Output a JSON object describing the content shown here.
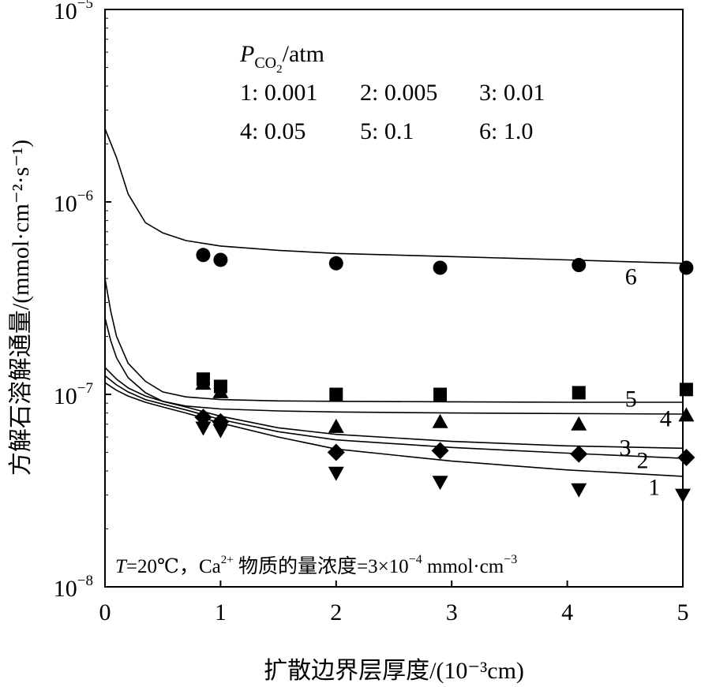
{
  "chart_data": {
    "type": "scatter",
    "title": "",
    "xlabel": "扩散边界层厚度/(10⁻³cm)",
    "ylabel": "方解石溶解通量/(mmol·cm⁻²·s⁻¹)",
    "xlim": [
      0,
      5
    ],
    "ylim": [
      1e-08,
      1e-05
    ],
    "y_scale": "log",
    "grid": false,
    "x_ticks": [
      {
        "value": 0,
        "label": "0"
      },
      {
        "value": 1,
        "label": "1"
      },
      {
        "value": 2,
        "label": "2"
      },
      {
        "value": 3,
        "label": "3"
      },
      {
        "value": 4,
        "label": "4"
      },
      {
        "value": 5,
        "label": "5"
      }
    ],
    "y_ticks": [
      {
        "value": 1e-08,
        "base": "10",
        "exp": "−8"
      },
      {
        "value": 1e-07,
        "base": "10",
        "exp": "−7"
      },
      {
        "value": 1e-06,
        "base": "10",
        "exp": "−6"
      },
      {
        "value": 1e-05,
        "base": "10",
        "exp": "−5"
      }
    ],
    "legend": {
      "position": "top-left",
      "title_main": "P",
      "title_sub": "CO",
      "title_sub2": "2",
      "title_unit": "/atm",
      "entries": [
        "1: 0.001",
        "2: 0.005",
        "3: 0.01",
        "4: 0.05",
        "5: 0.1",
        "6: 1.0"
      ]
    },
    "annotation": {
      "t_symbol": "T",
      "t_value": "=20℃，Ca",
      "ca_sup": "2+",
      "rest": " 物质的量浓度=3×10",
      "exp": "−4",
      "unit_a": " mmol·cm",
      "unit_exp": "−3"
    },
    "series": [
      {
        "label": "1",
        "marker": "triangle-down",
        "curve_x": [
          0,
          0.1,
          0.2,
          0.35,
          0.5,
          0.7,
          1.0,
          1.5,
          2.0,
          3.0,
          4.0,
          5.0
        ],
        "curve_y": [
          1.15e-07,
          1.05e-07,
          9.8e-08,
          9.1e-08,
          8.6e-08,
          8e-08,
          7.1e-08,
          6e-08,
          5.2e-08,
          4.5e-08,
          4.05e-08,
          3.75e-08
        ],
        "points_x": [
          0.85,
          1.0,
          2.0,
          2.9,
          4.1,
          5.0
        ],
        "points_y": [
          6.7e-08,
          6.5e-08,
          3.9e-08,
          3.5e-08,
          3.2e-08,
          3e-08
        ]
      },
      {
        "label": "2",
        "marker": "diamond",
        "curve_x": [
          0,
          0.1,
          0.2,
          0.35,
          0.5,
          0.7,
          1.0,
          1.5,
          2.0,
          3.0,
          4.0,
          5.0
        ],
        "curve_y": [
          1.25e-07,
          1.12e-07,
          1.03e-07,
          9.4e-08,
          8.9e-08,
          8.3e-08,
          7.4e-08,
          6.4e-08,
          5.8e-08,
          5.3e-08,
          4.95e-08,
          4.65e-08
        ],
        "points_x": [
          0.85,
          1.0,
          2.0,
          2.9,
          4.1,
          5.03
        ],
        "points_y": [
          7.6e-08,
          7.2e-08,
          5e-08,
          5.1e-08,
          4.9e-08,
          4.7e-08
        ]
      },
      {
        "label": "3",
        "marker": "none",
        "curve_x": [
          0,
          0.1,
          0.2,
          0.35,
          0.5,
          0.7,
          1.0,
          1.5,
          2.0,
          3.0,
          4.0,
          5.0
        ],
        "curve_y": [
          1.38e-07,
          1.2e-07,
          1.08e-07,
          9.8e-08,
          9.2e-08,
          8.6e-08,
          7.7e-08,
          6.7e-08,
          6.2e-08,
          5.7e-08,
          5.4e-08,
          5.25e-08
        ],
        "points_x": [],
        "points_y": []
      },
      {
        "label": "4",
        "marker": "triangle-up",
        "curve_x": [
          0,
          0.05,
          0.1,
          0.2,
          0.35,
          0.5,
          0.7,
          1.0,
          1.5,
          2.0,
          3.0,
          4.0,
          5.0
        ],
        "curve_y": [
          2.5e-07,
          1.9e-07,
          1.55e-07,
          1.22e-07,
          1.02e-07,
          9.2e-08,
          8.7e-08,
          8.4e-08,
          8.2e-08,
          8.1e-08,
          8e-08,
          7.95e-08,
          7.9e-08
        ],
        "points_x": [
          0.85,
          1.0,
          2.0,
          2.9,
          4.1,
          5.03
        ],
        "points_y": [
          1.14e-07,
          1.03e-07,
          6.8e-08,
          7.2e-08,
          7e-08,
          7.8e-08
        ]
      },
      {
        "label": "5",
        "marker": "square",
        "curve_x": [
          0,
          0.05,
          0.1,
          0.2,
          0.35,
          0.5,
          0.7,
          1.0,
          1.5,
          2.0,
          3.0,
          4.0,
          5.0
        ],
        "curve_y": [
          4e-07,
          2.7e-07,
          2e-07,
          1.45e-07,
          1.17e-07,
          1.03e-07,
          9.7e-08,
          9.4e-08,
          9.25e-08,
          9.2e-08,
          9.15e-08,
          9.1e-08,
          9.1e-08
        ],
        "points_x": [
          0.85,
          1.0,
          2.0,
          2.9,
          4.1,
          5.03
        ],
        "points_y": [
          1.2e-07,
          1.1e-07,
          1e-07,
          1e-07,
          1.02e-07,
          1.06e-07
        ]
      },
      {
        "label": "6",
        "marker": "circle",
        "curve_x": [
          0,
          0.1,
          0.2,
          0.35,
          0.5,
          0.7,
          1.0,
          1.5,
          2.0,
          3.0,
          4.0,
          5.0
        ],
        "curve_y": [
          2.4e-06,
          1.7e-06,
          1.1e-06,
          7.8e-07,
          6.9e-07,
          6.3e-07,
          5.9e-07,
          5.6e-07,
          5.4e-07,
          5.2e-07,
          5e-07,
          4.8e-07
        ],
        "points_x": [
          0.85,
          1.0,
          2.0,
          2.9,
          4.1,
          5.03
        ],
        "points_y": [
          5.3e-07,
          5e-07,
          4.8e-07,
          4.55e-07,
          4.7e-07,
          4.55e-07
        ]
      }
    ],
    "curve_labels": [
      {
        "text": "1",
        "x": 4.7,
        "y": 3.3e-08
      },
      {
        "text": "2",
        "x": 4.6,
        "y": 4.55e-08
      },
      {
        "text": "3",
        "x": 4.45,
        "y": 5.3e-08
      },
      {
        "text": "4",
        "x": 4.8,
        "y": 7.5e-08
      },
      {
        "text": "5",
        "x": 4.5,
        "y": 9.5e-08
      },
      {
        "text": "6",
        "x": 4.5,
        "y": 4.1e-07
      }
    ]
  }
}
